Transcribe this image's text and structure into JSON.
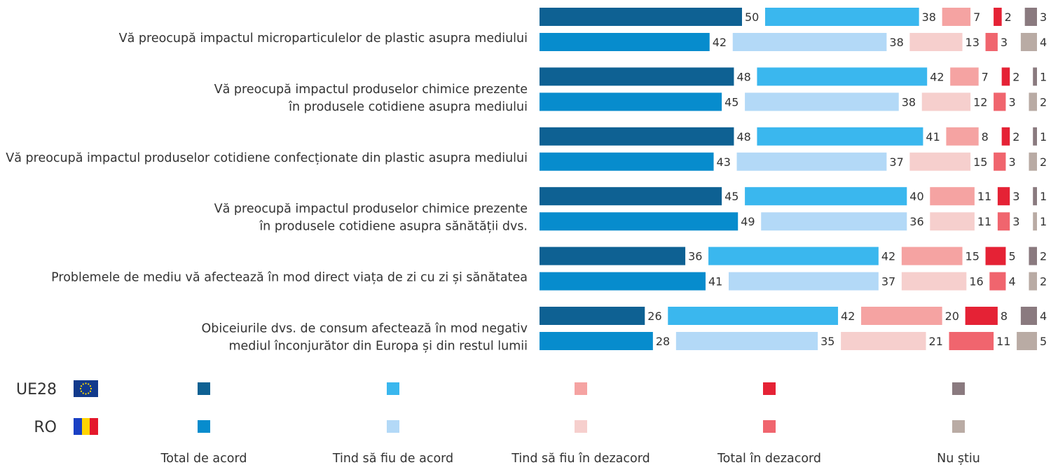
{
  "chart_data": {
    "type": "bar",
    "stacked": true,
    "orientation": "horizontal",
    "categories": [
      [
        "Vă preocupă impactul microparticulelor de plastic asupra mediului"
      ],
      [
        "Vă preocupă impactul produselor chimice prezente",
        "în produsele cotidiene asupra mediului"
      ],
      [
        "Vă preocupă impactul produselor cotidiene confecționate din plastic asupra mediului"
      ],
      [
        "Vă preocupă impactul produselor chimice prezente",
        "în produsele cotidiene asupra sănătății dvs."
      ],
      [
        "Problemele de mediu vă afectează în mod direct viața de zi cu zi și sănătatea"
      ],
      [
        "Obiceiurile dvs. de consum afectează în mod negativ",
        "mediul înconjurător din Europa și din restul lumii"
      ]
    ],
    "groups": [
      {
        "name": "UE28",
        "values": [
          [
            50,
            38,
            7,
            2,
            3
          ],
          [
            48,
            42,
            7,
            2,
            1
          ],
          [
            48,
            41,
            8,
            2,
            1
          ],
          [
            45,
            40,
            11,
            3,
            1
          ],
          [
            36,
            42,
            15,
            5,
            2
          ],
          [
            26,
            42,
            20,
            8,
            4
          ]
        ]
      },
      {
        "name": "RO",
        "values": [
          [
            42,
            38,
            13,
            3,
            4
          ],
          [
            45,
            38,
            12,
            3,
            2
          ],
          [
            43,
            37,
            15,
            3,
            2
          ],
          [
            49,
            36,
            11,
            3,
            1
          ],
          [
            41,
            37,
            16,
            4,
            2
          ],
          [
            28,
            35,
            21,
            11,
            5
          ]
        ]
      }
    ],
    "series_names": [
      "Total de acord",
      "Tind să fiu de acord",
      "Tind să fiu în dezacord",
      "Total în dezacord",
      "Nu știu"
    ],
    "colors": {
      "UE28": [
        "#0e6193",
        "#3ab7ee",
        "#f5a3a2",
        "#e52235",
        "#8a7a7f"
      ],
      "RO": [
        "#078ccd",
        "#b3d9f7",
        "#f6cfcd",
        "#f0656e",
        "#b9aba4"
      ]
    },
    "legend_position": "bottom",
    "grid": false
  },
  "legend": {
    "rows": [
      {
        "label": "UE28",
        "flag": "eu-flag-icon"
      },
      {
        "label": "RO",
        "flag": "ro-flag-icon"
      }
    ]
  }
}
